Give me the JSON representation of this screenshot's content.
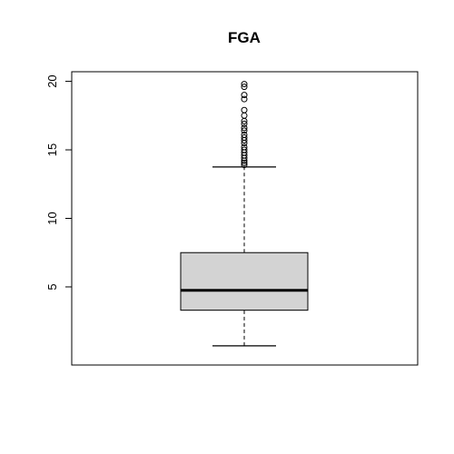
{
  "chart_data": {
    "type": "boxplot",
    "title": "FGA",
    "xlabel": "",
    "ylabel": "",
    "ylim": [
      -0.7,
      20.7
    ],
    "yticks": [
      5,
      10,
      15,
      20
    ],
    "grid": false,
    "box": {
      "whisker_low": 0.7,
      "q1": 3.3,
      "median": 4.75,
      "q3": 7.5,
      "whisker_high": 13.75
    },
    "outliers": [
      13.9,
      14.05,
      14.2,
      14.4,
      14.6,
      14.8,
      15.0,
      15.2,
      15.5,
      15.7,
      15.9,
      16.1,
      16.4,
      16.6,
      16.9,
      17.1,
      17.5,
      17.9,
      18.7,
      19.0,
      19.6,
      19.8
    ],
    "colors": {
      "box_fill": "#d3d3d3",
      "stroke": "#000000"
    }
  }
}
